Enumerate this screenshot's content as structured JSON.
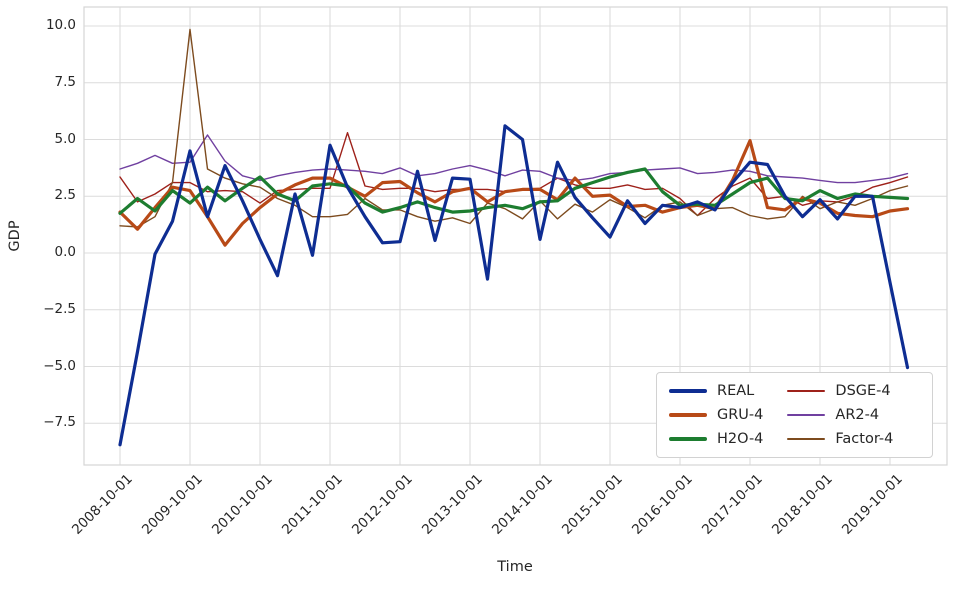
{
  "figure": {
    "xlabel": "Time",
    "ylabel": "GDP",
    "background": "#ffffff",
    "grid_color": "#dcdcdc",
    "spine_color": "#d6d6d6",
    "text_color": "#262626"
  },
  "chart_data": {
    "type": "line",
    "title": "",
    "xlabel": "Time",
    "ylabel": "GDP",
    "grid": true,
    "legend_position": "lower right",
    "ylim": [
      -9.3,
      10.8
    ],
    "ytick_values": [
      10.0,
      7.5,
      5.0,
      2.5,
      0.0,
      -2.5,
      -5.0,
      -7.5
    ],
    "ytick_labels": [
      "10.0",
      "7.5",
      "5.0",
      "2.5",
      "0.0",
      "−2.5",
      "−5.0",
      "−7.5"
    ],
    "xtick_labels": [
      "2008-10-01",
      "2009-10-01",
      "2010-10-01",
      "2011-10-01",
      "2012-10-01",
      "2013-10-01",
      "2014-10-01",
      "2015-10-01",
      "2016-10-01",
      "2017-10-01",
      "2018-10-01",
      "2019-10-01"
    ],
    "x": [
      "2008-10-01",
      "2009-01-01",
      "2009-04-01",
      "2009-07-01",
      "2009-10-01",
      "2010-01-01",
      "2010-04-01",
      "2010-07-01",
      "2010-10-01",
      "2011-01-01",
      "2011-04-01",
      "2011-07-01",
      "2011-10-01",
      "2012-01-01",
      "2012-04-01",
      "2012-07-01",
      "2012-10-01",
      "2013-01-01",
      "2013-04-01",
      "2013-07-01",
      "2013-10-01",
      "2014-01-01",
      "2014-04-01",
      "2014-07-01",
      "2014-10-01",
      "2015-01-01",
      "2015-04-01",
      "2015-07-01",
      "2015-10-01",
      "2016-01-01",
      "2016-04-01",
      "2016-07-01",
      "2016-10-01",
      "2017-01-01",
      "2017-04-01",
      "2017-07-01",
      "2017-10-01",
      "2018-01-01",
      "2018-04-01",
      "2018-07-01",
      "2018-10-01",
      "2019-01-01",
      "2019-04-01",
      "2019-07-01",
      "2019-10-01",
      "2020-01-01"
    ],
    "series": [
      {
        "name": "REAL",
        "color": "#0e2d92",
        "width": 3.2,
        "values": [
          -8.45,
          -4.35,
          -0.05,
          1.4,
          4.5,
          1.6,
          3.85,
          2.3,
          0.6,
          -1.0,
          2.6,
          -0.1,
          4.75,
          2.9,
          1.6,
          0.45,
          0.5,
          3.6,
          0.55,
          3.3,
          3.25,
          -1.15,
          5.6,
          5.0,
          0.6,
          4.0,
          2.45,
          1.55,
          0.7,
          2.3,
          1.3,
          2.1,
          2.0,
          2.25,
          1.9,
          3.1,
          4.0,
          3.9,
          2.5,
          1.6,
          2.35,
          1.5,
          2.5,
          2.5,
          -1.3,
          -5.05
        ]
      },
      {
        "name": "GRU-4",
        "color": "#b84a17",
        "width": 3.2,
        "values": [
          1.8,
          1.05,
          2.0,
          2.9,
          2.75,
          1.6,
          0.35,
          1.3,
          2.0,
          2.6,
          3.0,
          3.3,
          3.3,
          2.9,
          2.5,
          3.1,
          3.15,
          2.65,
          2.25,
          2.7,
          2.85,
          2.25,
          2.7,
          2.8,
          2.8,
          2.35,
          3.3,
          2.5,
          2.55,
          2.05,
          2.1,
          1.8,
          2.0,
          2.1,
          1.95,
          3.2,
          4.95,
          2.0,
          1.9,
          2.4,
          2.2,
          1.75,
          1.65,
          1.6,
          1.85,
          1.95
        ]
      },
      {
        "name": "H2O-4",
        "color": "#1d7d30",
        "width": 3.2,
        "values": [
          1.75,
          2.4,
          1.85,
          2.75,
          2.2,
          2.9,
          2.3,
          2.85,
          3.35,
          2.6,
          2.3,
          2.95,
          3.05,
          2.95,
          2.2,
          1.8,
          2.0,
          2.25,
          2.0,
          1.8,
          1.85,
          2.0,
          2.1,
          1.95,
          2.25,
          2.3,
          2.85,
          3.1,
          3.35,
          3.55,
          3.7,
          2.7,
          2.1,
          2.15,
          2.1,
          2.6,
          3.1,
          3.3,
          2.4,
          2.3,
          2.75,
          2.4,
          2.6,
          2.5,
          2.45,
          2.4
        ]
      },
      {
        "name": "DSGE-4",
        "color": "#9e211a",
        "width": 1.4,
        "values": [
          3.35,
          2.25,
          2.6,
          3.1,
          3.1,
          2.7,
          2.75,
          2.7,
          2.2,
          2.75,
          2.8,
          2.85,
          2.85,
          5.3,
          2.95,
          2.8,
          2.85,
          2.85,
          2.7,
          2.8,
          2.8,
          2.8,
          2.7,
          2.8,
          2.85,
          3.3,
          3.0,
          2.85,
          2.85,
          3.0,
          2.8,
          2.85,
          2.4,
          1.65,
          2.4,
          2.95,
          3.3,
          2.4,
          2.5,
          2.1,
          2.3,
          2.25,
          2.5,
          2.9,
          3.1,
          3.35
        ]
      },
      {
        "name": "AR2-4",
        "color": "#7040a0",
        "width": 1.4,
        "values": [
          3.7,
          3.95,
          4.3,
          3.95,
          4.0,
          5.2,
          4.05,
          3.4,
          3.2,
          3.4,
          3.55,
          3.65,
          3.7,
          3.65,
          3.6,
          3.5,
          3.75,
          3.4,
          3.5,
          3.7,
          3.85,
          3.65,
          3.4,
          3.65,
          3.6,
          3.3,
          3.2,
          3.3,
          3.5,
          3.55,
          3.65,
          3.7,
          3.75,
          3.5,
          3.55,
          3.65,
          3.6,
          3.4,
          3.35,
          3.3,
          3.2,
          3.1,
          3.1,
          3.2,
          3.3,
          3.5
        ]
      },
      {
        "name": "Factor-4",
        "color": "#7d4b1e",
        "width": 1.4,
        "values": [
          1.2,
          1.15,
          1.6,
          3.1,
          9.85,
          3.7,
          3.3,
          3.05,
          2.9,
          2.4,
          2.1,
          1.6,
          1.6,
          1.7,
          2.4,
          1.9,
          1.9,
          1.6,
          1.4,
          1.55,
          1.3,
          2.2,
          1.95,
          1.5,
          2.3,
          1.5,
          2.15,
          1.8,
          2.35,
          2.0,
          1.55,
          2.1,
          2.25,
          1.65,
          1.95,
          2.0,
          1.65,
          1.5,
          1.6,
          2.5,
          1.95,
          2.25,
          2.1,
          2.4,
          2.75,
          2.95
        ]
      }
    ]
  }
}
